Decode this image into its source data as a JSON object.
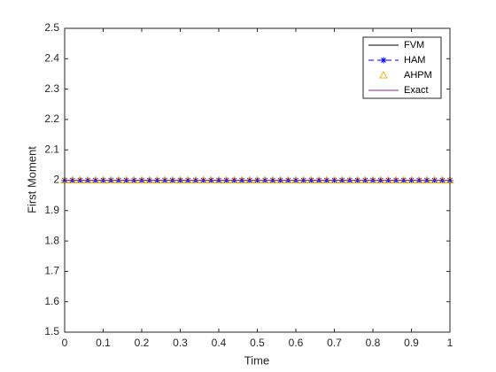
{
  "chart_data": {
    "type": "line",
    "xlabel": "Time",
    "ylabel": "First Moment",
    "x": [
      0,
      0.02,
      0.04,
      0.06,
      0.08,
      0.1,
      0.12,
      0.14,
      0.16,
      0.18,
      0.2,
      0.22,
      0.24,
      0.26,
      0.28,
      0.3,
      0.32,
      0.34,
      0.36,
      0.38,
      0.4,
      0.42,
      0.44,
      0.46,
      0.48,
      0.5,
      0.52,
      0.54,
      0.56,
      0.58,
      0.6,
      0.62,
      0.64,
      0.66,
      0.68,
      0.7,
      0.72,
      0.74,
      0.76,
      0.78,
      0.8,
      0.82,
      0.84,
      0.86,
      0.88,
      0.9,
      0.92,
      0.94,
      0.96,
      0.98,
      1
    ],
    "series": [
      {
        "name": "FVM",
        "color": "#000000",
        "line": "solid",
        "marker": null,
        "values": [
          2,
          2,
          2,
          2,
          2,
          2,
          2,
          2,
          2,
          2,
          2,
          2,
          2,
          2,
          2,
          2,
          2,
          2,
          2,
          2,
          2,
          2,
          2,
          2,
          2,
          2,
          2,
          2,
          2,
          2,
          2,
          2,
          2,
          2,
          2,
          2,
          2,
          2,
          2,
          2,
          2,
          2,
          2,
          2,
          2,
          2,
          2,
          2,
          2,
          2,
          2
        ]
      },
      {
        "name": "HAM",
        "color": "#0000ff",
        "line": "dashed",
        "marker": "asterisk",
        "values": [
          2,
          2,
          2,
          2,
          2,
          2,
          2,
          2,
          2,
          2,
          2,
          2,
          2,
          2,
          2,
          2,
          2,
          2,
          2,
          2,
          2,
          2,
          2,
          2,
          2,
          2,
          2,
          2,
          2,
          2,
          2,
          2,
          2,
          2,
          2,
          2,
          2,
          2,
          2,
          2,
          2,
          2,
          2,
          2,
          2,
          2,
          2,
          2,
          2,
          2,
          2
        ]
      },
      {
        "name": "AHPM",
        "color": "#edb120",
        "line": "none",
        "marker": "triangle",
        "values": [
          2,
          2,
          2,
          2,
          2,
          2,
          2,
          2,
          2,
          2,
          2,
          2,
          2,
          2,
          2,
          2,
          2,
          2,
          2,
          2,
          2,
          2,
          2,
          2,
          2,
          2,
          2,
          2,
          2,
          2,
          2,
          2,
          2,
          2,
          2,
          2,
          2,
          2,
          2,
          2,
          2,
          2,
          2,
          2,
          2,
          2,
          2,
          2,
          2,
          2,
          2
        ]
      },
      {
        "name": "Exact",
        "color": "#7e2f8e",
        "line": "solid",
        "marker": null,
        "values": [
          2,
          2,
          2,
          2,
          2,
          2,
          2,
          2,
          2,
          2,
          2,
          2,
          2,
          2,
          2,
          2,
          2,
          2,
          2,
          2,
          2,
          2,
          2,
          2,
          2,
          2,
          2,
          2,
          2,
          2,
          2,
          2,
          2,
          2,
          2,
          2,
          2,
          2,
          2,
          2,
          2,
          2,
          2,
          2,
          2,
          2,
          2,
          2,
          2,
          2,
          2
        ]
      }
    ],
    "xlim": [
      0,
      1
    ],
    "xticks": [
      0,
      0.1,
      0.2,
      0.3,
      0.4,
      0.5,
      0.6,
      0.7,
      0.8,
      0.9,
      1
    ],
    "ylim": [
      1.5,
      2.5
    ],
    "yticks": [
      1.5,
      1.6,
      1.7,
      1.8,
      1.9,
      2,
      2.1,
      2.2,
      2.3,
      2.4,
      2.5
    ],
    "grid": false,
    "legend": "northeast"
  }
}
